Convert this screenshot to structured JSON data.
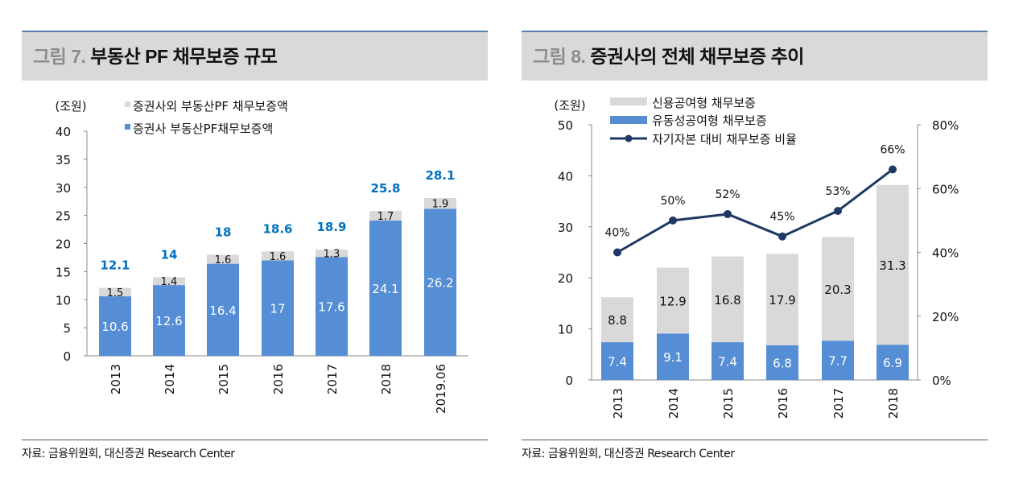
{
  "left": {
    "fig_no": "그림 7.",
    "title": "부동산 PF 채무보증 규모",
    "source": "자료: 금융위원회, 대신증권 Research Center"
  },
  "right": {
    "fig_no": "그림 8.",
    "title": "증권사의 전체 채무보증 추이",
    "source": "자료: 금융위원회, 대신증권 Research Center"
  },
  "chart_data": [
    {
      "type": "bar",
      "stacked": true,
      "unit_label": "(조원)",
      "categories": [
        "2013",
        "2014",
        "2015",
        "2016",
        "2017",
        "2018",
        "2019.06"
      ],
      "ylim": [
        0,
        40
      ],
      "yticks": [
        0,
        5,
        10,
        15,
        20,
        25,
        30,
        35,
        40
      ],
      "series": [
        {
          "name": "증권사 부동산PF채무보증액",
          "color": "#558ed5",
          "values": [
            10.6,
            12.6,
            16.4,
            17,
            17.6,
            24.1,
            26.2
          ]
        },
        {
          "name": "증권사외 부동산PF 채무보증액",
          "color": "#d9d9d9",
          "values": [
            1.5,
            1.4,
            1.6,
            1.6,
            1.3,
            1.7,
            1.9
          ]
        }
      ],
      "totals": [
        "12.1",
        "14",
        "18",
        "18.6",
        "18.9",
        "25.8",
        "28.1"
      ],
      "total_color": "#0070c0",
      "legend": "top"
    },
    {
      "type": "bar+line",
      "unit_label": "(조원)",
      "categories": [
        "2013",
        "2014",
        "2015",
        "2016",
        "2017",
        "2018"
      ],
      "ylim": [
        0,
        50
      ],
      "yticks": [
        0,
        10,
        20,
        30,
        40,
        50
      ],
      "y2lim": [
        0,
        80
      ],
      "y2ticks": [
        "0%",
        "20%",
        "40%",
        "60%",
        "80%"
      ],
      "series": [
        {
          "name": "유동성공여형 채무보증",
          "color": "#558ed5",
          "values": [
            7.4,
            9.1,
            7.4,
            6.8,
            7.7,
            6.9
          ]
        },
        {
          "name": "신용공여형 채무보증",
          "color": "#d9d9d9",
          "values": [
            8.8,
            12.9,
            16.8,
            17.9,
            20.3,
            31.3
          ]
        },
        {
          "name": "자기자본 대비 채무보증 비율",
          "color": "#1f3864",
          "axis": "right",
          "values": [
            40,
            50,
            52,
            45,
            53,
            66
          ],
          "labels": [
            "40%",
            "50%",
            "52%",
            "45%",
            "53%",
            "66%"
          ]
        }
      ],
      "legend": "top"
    }
  ]
}
